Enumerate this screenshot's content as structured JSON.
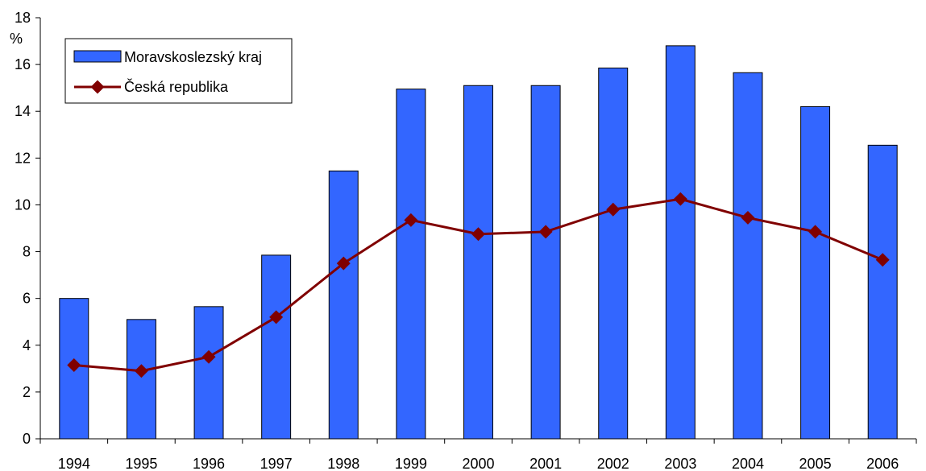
{
  "chart_data": {
    "type": "bar",
    "ylabel": "%",
    "ylim": [
      0,
      18
    ],
    "yticks": [
      0,
      2,
      4,
      6,
      8,
      10,
      12,
      14,
      16,
      18
    ],
    "grid": false,
    "legend_position": "top-left",
    "categories": [
      "1994",
      "1995",
      "1996",
      "1997",
      "1998",
      "1999",
      "2000",
      "2001",
      "2002",
      "2003",
      "2004",
      "2005",
      "2006"
    ],
    "series": [
      {
        "name": "Moravskoslezský kraj",
        "type": "bar",
        "color": "#3366ff",
        "values": [
          6.0,
          5.1,
          5.65,
          7.85,
          11.45,
          14.95,
          15.1,
          15.1,
          15.85,
          16.8,
          15.65,
          14.2,
          12.55
        ]
      },
      {
        "name": "Česká republika",
        "type": "line",
        "color": "#800000",
        "values": [
          3.15,
          2.9,
          3.5,
          5.2,
          7.5,
          9.35,
          8.75,
          8.85,
          9.8,
          10.25,
          9.45,
          8.85,
          7.65
        ]
      }
    ]
  }
}
